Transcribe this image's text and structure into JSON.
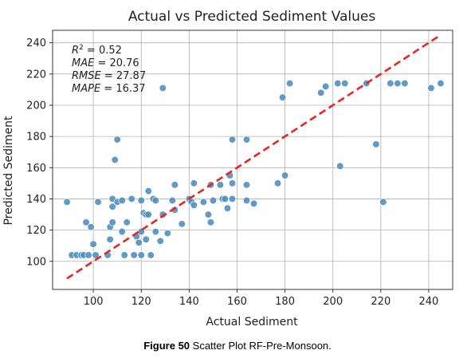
{
  "chart_data": {
    "type": "scatter",
    "title": "Actual vs Predicted Sediment Values",
    "xlabel": "Actual Sediment",
    "ylabel": "Predicted Sediment",
    "xlim": [
      83,
      250
    ],
    "ylim": [
      82,
      248
    ],
    "xticks": [
      100,
      120,
      140,
      160,
      180,
      200,
      220,
      240
    ],
    "yticks": [
      100,
      120,
      140,
      160,
      180,
      200,
      220,
      240
    ],
    "grid": true,
    "point_color": "#4f8fbf",
    "line_color": "#e8251f",
    "metrics": [
      {
        "name": "R",
        "sup": "2",
        "value": " = 0.52"
      },
      {
        "name": "MAE",
        "sup": "",
        "value": " = 20.76"
      },
      {
        "name": "RMSE",
        "sup": "",
        "value": " = 27.87"
      },
      {
        "name": "MAPE",
        "sup": "",
        "value": " = 16.37"
      }
    ],
    "reference_line": {
      "x": [
        89,
        245
      ],
      "y": [
        89,
        245
      ],
      "style": "dashed"
    },
    "points": [
      {
        "x": 89,
        "y": 138
      },
      {
        "x": 91,
        "y": 104
      },
      {
        "x": 93,
        "y": 104
      },
      {
        "x": 95,
        "y": 104
      },
      {
        "x": 96,
        "y": 104
      },
      {
        "x": 97,
        "y": 125
      },
      {
        "x": 98,
        "y": 104
      },
      {
        "x": 99,
        "y": 122
      },
      {
        "x": 100,
        "y": 111
      },
      {
        "x": 101,
        "y": 104
      },
      {
        "x": 102,
        "y": 138
      },
      {
        "x": 106,
        "y": 104
      },
      {
        "x": 107,
        "y": 114
      },
      {
        "x": 107,
        "y": 122
      },
      {
        "x": 108,
        "y": 125
      },
      {
        "x": 108,
        "y": 135
      },
      {
        "x": 108,
        "y": 140
      },
      {
        "x": 109,
        "y": 165
      },
      {
        "x": 110,
        "y": 178
      },
      {
        "x": 110,
        "y": 138
      },
      {
        "x": 112,
        "y": 119
      },
      {
        "x": 112,
        "y": 139
      },
      {
        "x": 113,
        "y": 104
      },
      {
        "x": 114,
        "y": 125
      },
      {
        "x": 116,
        "y": 140
      },
      {
        "x": 117,
        "y": 104
      },
      {
        "x": 118,
        "y": 116
      },
      {
        "x": 119,
        "y": 112
      },
      {
        "x": 120,
        "y": 119
      },
      {
        "x": 120,
        "y": 104
      },
      {
        "x": 120,
        "y": 139
      },
      {
        "x": 121,
        "y": 131
      },
      {
        "x": 122,
        "y": 114
      },
      {
        "x": 122,
        "y": 130
      },
      {
        "x": 123,
        "y": 145
      },
      {
        "x": 123,
        "y": 130
      },
      {
        "x": 124,
        "y": 104
      },
      {
        "x": 125,
        "y": 140
      },
      {
        "x": 126,
        "y": 119
      },
      {
        "x": 126,
        "y": 139
      },
      {
        "x": 128,
        "y": 113
      },
      {
        "x": 129,
        "y": 211
      },
      {
        "x": 129,
        "y": 130
      },
      {
        "x": 131,
        "y": 118
      },
      {
        "x": 133,
        "y": 139
      },
      {
        "x": 134,
        "y": 149
      },
      {
        "x": 134,
        "y": 133
      },
      {
        "x": 137,
        "y": 124
      },
      {
        "x": 140,
        "y": 140
      },
      {
        "x": 141,
        "y": 138
      },
      {
        "x": 142,
        "y": 150
      },
      {
        "x": 142,
        "y": 136
      },
      {
        "x": 146,
        "y": 138
      },
      {
        "x": 148,
        "y": 130
      },
      {
        "x": 149,
        "y": 125
      },
      {
        "x": 149,
        "y": 149
      },
      {
        "x": 150,
        "y": 139
      },
      {
        "x": 153,
        "y": 149
      },
      {
        "x": 154,
        "y": 140
      },
      {
        "x": 155,
        "y": 140
      },
      {
        "x": 156,
        "y": 134
      },
      {
        "x": 157,
        "y": 155
      },
      {
        "x": 158,
        "y": 150
      },
      {
        "x": 158,
        "y": 178
      },
      {
        "x": 158,
        "y": 140
      },
      {
        "x": 164,
        "y": 178
      },
      {
        "x": 164,
        "y": 149
      },
      {
        "x": 164,
        "y": 139
      },
      {
        "x": 167,
        "y": 137
      },
      {
        "x": 177,
        "y": 150
      },
      {
        "x": 179,
        "y": 205
      },
      {
        "x": 180,
        "y": 155
      },
      {
        "x": 182,
        "y": 214
      },
      {
        "x": 195,
        "y": 208
      },
      {
        "x": 197,
        "y": 212
      },
      {
        "x": 202,
        "y": 214
      },
      {
        "x": 203,
        "y": 161
      },
      {
        "x": 205,
        "y": 214
      },
      {
        "x": 214,
        "y": 214
      },
      {
        "x": 218,
        "y": 175
      },
      {
        "x": 221,
        "y": 138
      },
      {
        "x": 224,
        "y": 214
      },
      {
        "x": 227,
        "y": 214
      },
      {
        "x": 230,
        "y": 214
      },
      {
        "x": 241,
        "y": 211
      },
      {
        "x": 245,
        "y": 214
      }
    ]
  },
  "caption": {
    "label": "Figure 50",
    "text": " Scatter Plot RF-Pre-Monsoon."
  }
}
